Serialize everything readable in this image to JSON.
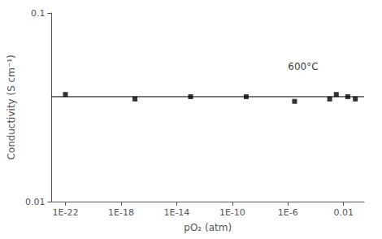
{
  "chart_data": {
    "type": "scatter",
    "x": [
      1e-22,
      1e-17,
      1e-13,
      1e-09,
      3e-06,
      0.001,
      0.003,
      0.02,
      0.07
    ],
    "values": [
      0.037,
      0.035,
      0.036,
      0.036,
      0.034,
      0.035,
      0.037,
      0.036,
      0.035
    ],
    "xlabel": "pO₂ (atm)",
    "ylabel": "Conductivity (S cm⁻¹)",
    "log": true,
    "grid": false,
    "xlim": [
      1e-23,
      0.3
    ],
    "ylim": [
      0.01,
      0.1
    ],
    "xticks": [
      {
        "value": 1e-22,
        "label": "1E-22"
      },
      {
        "value": 1e-18,
        "label": "1E-18"
      },
      {
        "value": 1e-14,
        "label": "1E-14"
      },
      {
        "value": 1e-10,
        "label": "1E-10"
      },
      {
        "value": 1e-06,
        "label": "1E-6"
      },
      0.01
    ],
    "yticks": [
      0.01,
      0.1
    ],
    "marker": "square",
    "color": "#000000",
    "reference_line": {
      "y": 0.036,
      "color": "#000000"
    },
    "annotations": [
      {
        "text": "600°C",
        "x": 1e-06,
        "y": 0.052
      }
    ]
  }
}
